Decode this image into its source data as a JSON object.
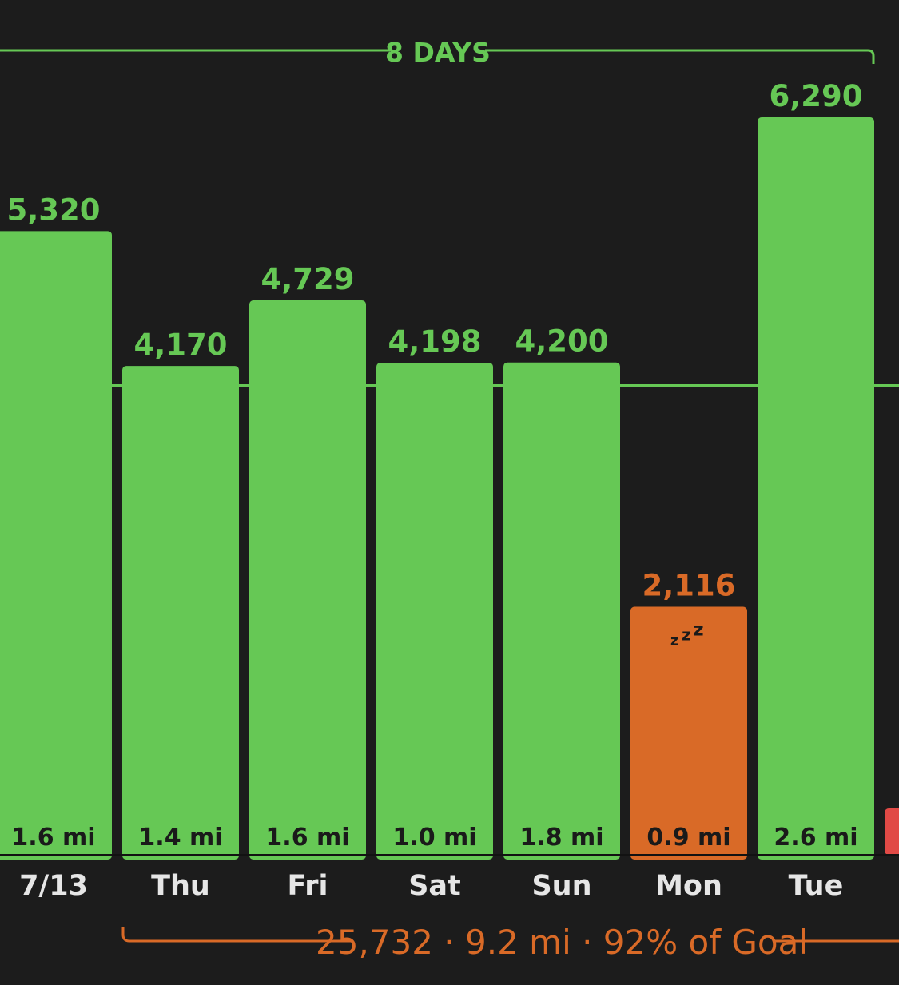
{
  "range_label": "8 DAYS",
  "summary": "25,732 · 9.2 mi · 92% of Goal",
  "sleep_glyph": "z z z",
  "colors": {
    "background": "#1c1c1c",
    "goal_met": "#66c855",
    "goal_missed": "#d96a27",
    "partial_red": "#e14a46",
    "label_dark": "#1a1a1a",
    "day_label": "#e6e6e6"
  },
  "chart_data": {
    "type": "bar",
    "categories": [
      "7/13",
      "Thu",
      "Fri",
      "Sat",
      "Sun",
      "Mon",
      "Tue"
    ],
    "values": [
      5320,
      4170,
      4729,
      4198,
      4200,
      2116,
      6290
    ],
    "value_labels": [
      "5,320",
      "4,170",
      "4,729",
      "4,198",
      "4,200",
      "2,116",
      "6,290"
    ],
    "distances": [
      "1.6 mi",
      "1.4 mi",
      "1.6 mi",
      "1.0 mi",
      "1.8 mi",
      "0.9 mi",
      "2.6 mi"
    ],
    "status": [
      "met",
      "met",
      "met",
      "met",
      "met",
      "missed",
      "met"
    ],
    "goal": 4000,
    "ylim": [
      0,
      6290
    ]
  }
}
